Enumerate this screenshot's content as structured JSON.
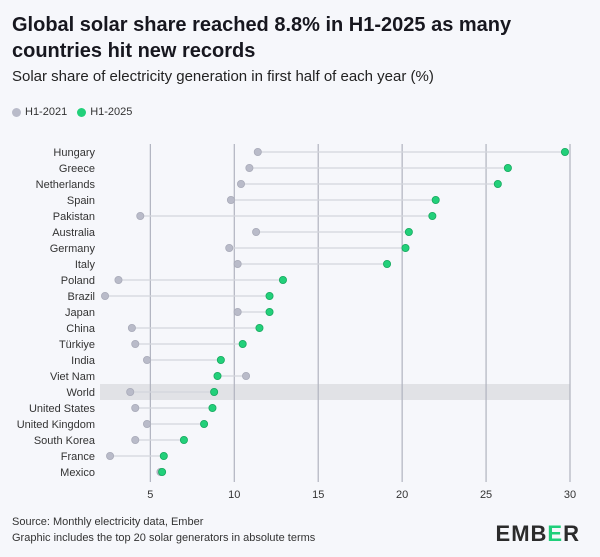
{
  "title": "Global solar share reached 8.8% in H1-2025 as many countries hit new records",
  "subtitle": "Solar share of electricity generation in first half of each year (%)",
  "footer": {
    "source": "Source: Monthly electricity data, Ember",
    "note": "Graphic includes the top 20 solar generators in absolute terms"
  },
  "logo": "EMBER",
  "colors": {
    "h1_2021": "#b9bbc9",
    "h1_2025": "#22d07a",
    "highlight": "#e1e2e6",
    "grid": "#b0b3bf"
  },
  "chart_data": {
    "type": "dot-plot",
    "xlim": [
      2,
      30
    ],
    "xticks": [
      5,
      10,
      15,
      20,
      25,
      30
    ],
    "grid": true,
    "legend_placement": "top-left",
    "highlight": "World",
    "categories": [
      "Hungary",
      "Greece",
      "Netherlands",
      "Spain",
      "Pakistan",
      "Australia",
      "Germany",
      "Italy",
      "Poland",
      "Brazil",
      "Japan",
      "China",
      "Türkiye",
      "India",
      "Viet Nam",
      "World",
      "United States",
      "United Kingdom",
      "South Korea",
      "France",
      "Mexico"
    ],
    "series": [
      {
        "name": "H1-2021",
        "values": [
          11.4,
          10.9,
          10.4,
          9.8,
          4.4,
          11.3,
          9.7,
          10.2,
          3.1,
          2.3,
          10.2,
          3.9,
          4.1,
          4.8,
          10.7,
          3.8,
          4.1,
          4.8,
          4.1,
          2.6,
          5.6
        ]
      },
      {
        "name": "H1-2025",
        "values": [
          29.7,
          26.3,
          25.7,
          22.0,
          21.8,
          20.4,
          20.2,
          19.1,
          12.9,
          12.1,
          12.1,
          11.5,
          10.5,
          9.2,
          9.0,
          8.8,
          8.7,
          8.2,
          7.0,
          5.8,
          5.7
        ]
      }
    ]
  }
}
